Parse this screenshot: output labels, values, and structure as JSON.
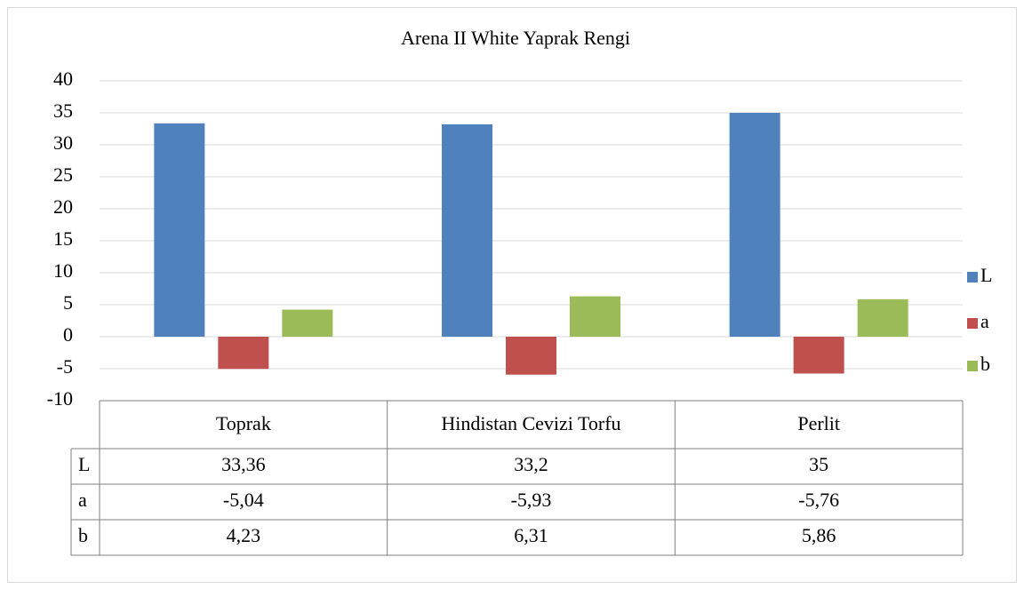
{
  "chart_data": {
    "type": "bar",
    "title": "Arena II White Yaprak Rengi",
    "categories": [
      "Toprak",
      "Hindistan Cevizi Torfu",
      "Perlit"
    ],
    "series": [
      {
        "name": "L",
        "color": "#4f81bd",
        "values": [
          33.36,
          33.2,
          35
        ],
        "value_labels": [
          "33,36",
          "33,2",
          "35"
        ]
      },
      {
        "name": "a",
        "color": "#c0504d",
        "values": [
          -5.04,
          -5.93,
          -5.76
        ],
        "value_labels": [
          "-5,04",
          "-5,93",
          "-5,76"
        ]
      },
      {
        "name": "b",
        "color": "#9bbb59",
        "values": [
          4.23,
          6.31,
          5.86
        ],
        "value_labels": [
          "4,23",
          "6,31",
          "5,86"
        ]
      }
    ],
    "ylim": [
      -10,
      40
    ],
    "yticks": [
      -10,
      -5,
      0,
      5,
      10,
      15,
      20,
      25,
      30,
      35,
      40
    ],
    "grid": true,
    "legend": "right"
  }
}
